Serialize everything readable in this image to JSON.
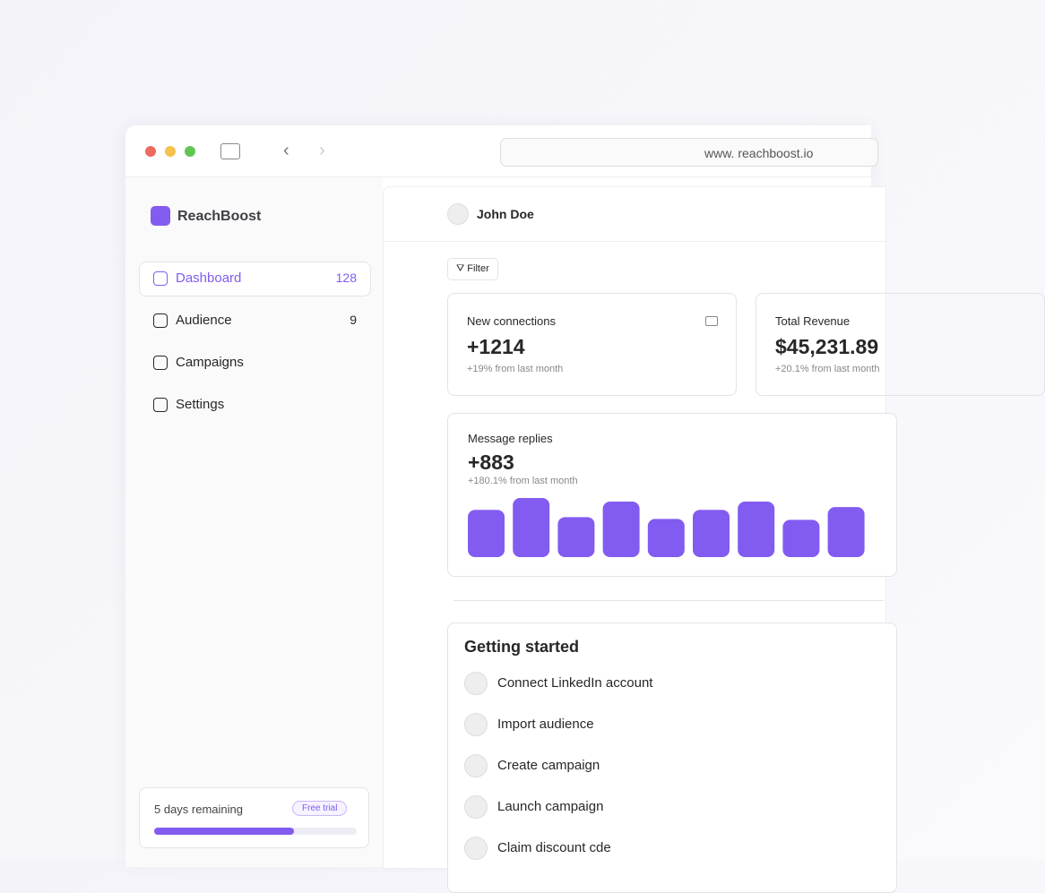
{
  "browser": {
    "url": "www. reachboost.io"
  },
  "sidebar": {
    "brand": "ReachBoost",
    "nav": [
      {
        "label": "Dashboard",
        "count": "128"
      },
      {
        "label": "Audience",
        "count": "9"
      },
      {
        "label": "Campaigns"
      },
      {
        "label": "Settings"
      }
    ],
    "trial": {
      "remaining": "5 days remaining",
      "badge": "Free trial",
      "progress": 69
    }
  },
  "header": {
    "user": "John Doe"
  },
  "filter": "Filter",
  "cards": [
    {
      "title": "New connections",
      "value": "+1214",
      "change": "+19% from last month"
    },
    {
      "title": "Total Revenue",
      "value": "$45,231.89",
      "change": "+20.1% from last month"
    }
  ],
  "chart_data": {
    "type": "bar",
    "title": "Message replies",
    "value": "+883",
    "change": "+180.1% from last month",
    "values": [
      52,
      65,
      44,
      61,
      42,
      52,
      61,
      41,
      55
    ],
    "color": "#825cf0",
    "ylim": [
      0,
      65
    ]
  },
  "getting_started": {
    "title": "Getting started",
    "items": [
      "Connect LinkedIn account",
      "Import audience",
      "Create campaign",
      "Launch campaign",
      "Claim discount cde"
    ]
  }
}
